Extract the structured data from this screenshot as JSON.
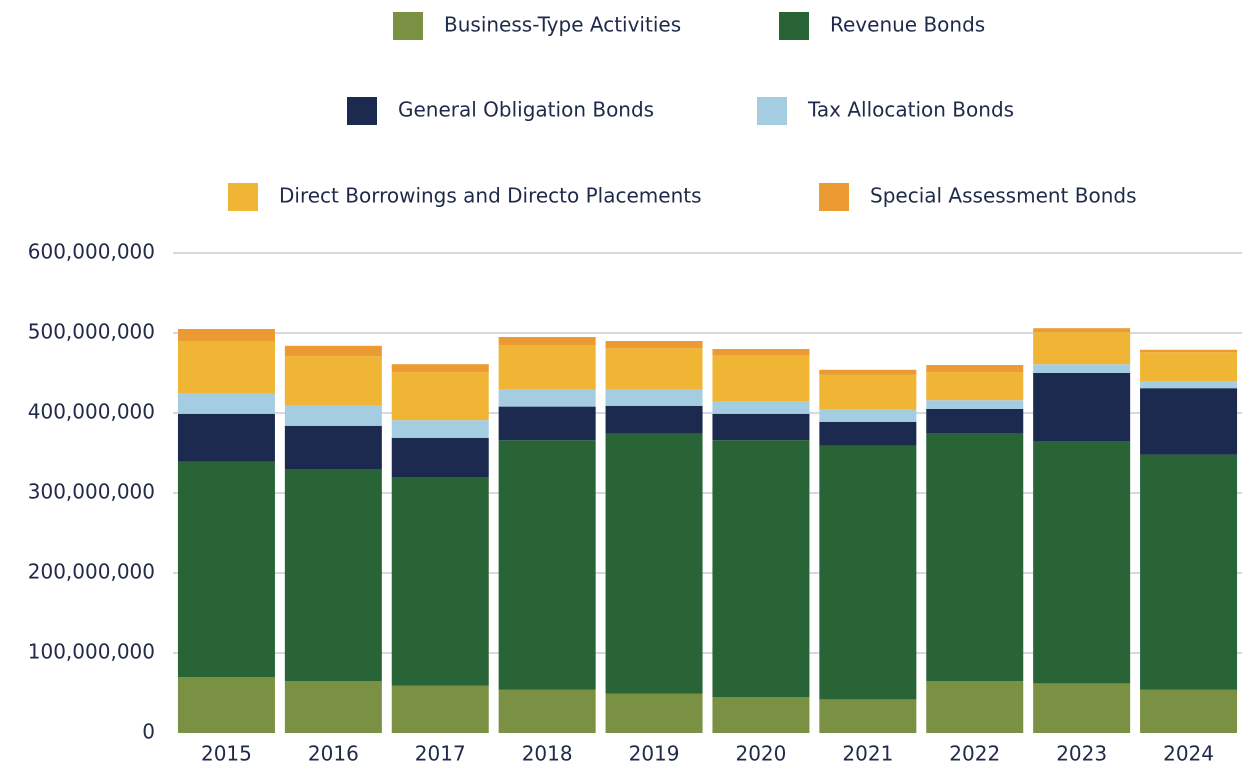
{
  "chart_data": {
    "type": "stacked_bar",
    "categories": [
      "2015",
      "2016",
      "2017",
      "2018",
      "2019",
      "2020",
      "2021",
      "2022",
      "2023",
      "2024"
    ],
    "series": [
      {
        "name": "Business-Type Activities",
        "color": "#7a9143",
        "values": [
          70000000,
          65000000,
          59000000,
          54000000,
          49000000,
          45000000,
          42000000,
          65000000,
          62000000,
          54000000
        ]
      },
      {
        "name": "Revenue Bonds",
        "color": "#296437",
        "values": [
          269000000,
          265000000,
          261000000,
          312000000,
          325000000,
          321000000,
          317000000,
          310000000,
          303000000,
          294000000
        ]
      },
      {
        "name": "General Obligation Bonds",
        "color": "#1b2a4e",
        "values": [
          60000000,
          54000000,
          49000000,
          42000000,
          35000000,
          33000000,
          30000000,
          30000000,
          85000000,
          83000000
        ]
      },
      {
        "name": "Tax Allocation Bonds",
        "color": "#a5cde2",
        "values": [
          25000000,
          25000000,
          22000000,
          22000000,
          20000000,
          16000000,
          16000000,
          11000000,
          11000000,
          9000000
        ]
      },
      {
        "name": "Direct Borrowings and Directo Placements",
        "color": "#f0b534",
        "values": [
          66000000,
          62000000,
          60000000,
          55000000,
          52000000,
          57000000,
          43000000,
          35000000,
          40000000,
          36000000
        ]
      },
      {
        "name": "Special Assessment Bonds",
        "color": "#ec9a32",
        "values": [
          15000000,
          13000000,
          10000000,
          10000000,
          9000000,
          8000000,
          6000000,
          9000000,
          5000000,
          3000000
        ]
      }
    ],
    "ylim": [
      0,
      600000000
    ],
    "yticks": [
      0,
      {
        "value": 100000000,
        "label": "100,000,000"
      },
      {
        "value": 200000000,
        "label": "200,000,000"
      },
      {
        "value": 300000000,
        "label": "300,000,000"
      },
      {
        "value": 400000000,
        "label": "400,000,000"
      },
      {
        "value": 500000000,
        "label": "500,000,000"
      },
      {
        "value": 600000000,
        "label": "600,000,000"
      }
    ],
    "grid": true
  }
}
